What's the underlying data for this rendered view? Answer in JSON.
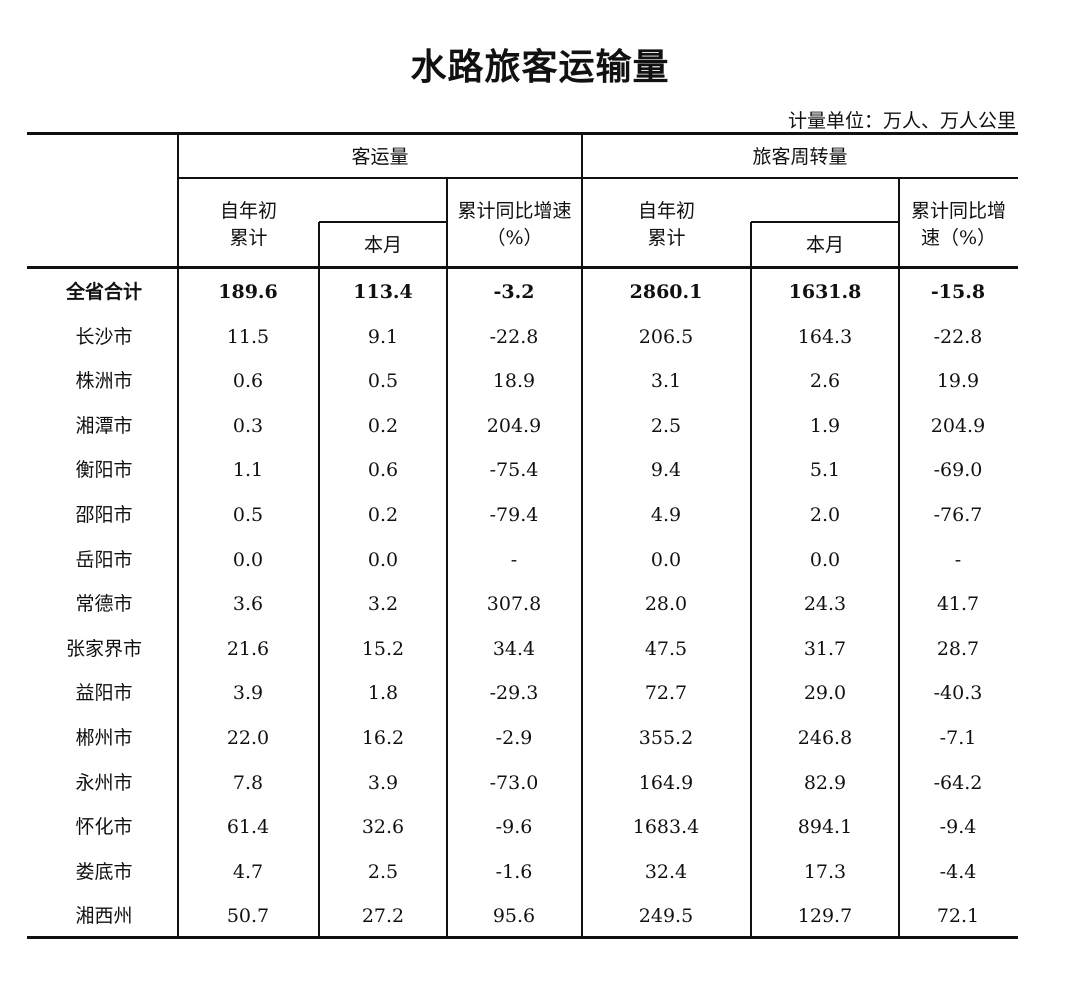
{
  "title": "水路旅客运输量",
  "unit": "计量单位：万人、万人公里",
  "headers": {
    "group1": "客运量",
    "group2": "旅客周转量",
    "ytd": "自年初\n累计",
    "ytd_line1": "自年初",
    "ytd_line2": "累计",
    "month": "本月",
    "growth1_line1": "累计同比增速",
    "growth1_line2": "（%）",
    "growth2_line1": "累计同比增",
    "growth2_line2": "速（%）"
  },
  "rows": [
    {
      "region": "全省合计",
      "values": [
        "189.6",
        "113.4",
        "-3.2",
        "2860.1",
        "1631.8",
        "-15.8"
      ],
      "bold": true
    },
    {
      "region": "长沙市",
      "values": [
        "11.5",
        "9.1",
        "-22.8",
        "206.5",
        "164.3",
        "-22.8"
      ]
    },
    {
      "region": "株洲市",
      "values": [
        "0.6",
        "0.5",
        "18.9",
        "3.1",
        "2.6",
        "19.9"
      ]
    },
    {
      "region": "湘潭市",
      "values": [
        "0.3",
        "0.2",
        "204.9",
        "2.5",
        "1.9",
        "204.9"
      ]
    },
    {
      "region": "衡阳市",
      "values": [
        "1.1",
        "0.6",
        "-75.4",
        "9.4",
        "5.1",
        "-69.0"
      ]
    },
    {
      "region": "邵阳市",
      "values": [
        "0.5",
        "0.2",
        "-79.4",
        "4.9",
        "2.0",
        "-76.7"
      ]
    },
    {
      "region": "岳阳市",
      "values": [
        "0.0",
        "0.0",
        "-",
        "0.0",
        "0.0",
        "-"
      ]
    },
    {
      "region": "常德市",
      "values": [
        "3.6",
        "3.2",
        "307.8",
        "28.0",
        "24.3",
        "41.7"
      ]
    },
    {
      "region": "张家界市",
      "values": [
        "21.6",
        "15.2",
        "34.4",
        "47.5",
        "31.7",
        "28.7"
      ]
    },
    {
      "region": "益阳市",
      "values": [
        "3.9",
        "1.8",
        "-29.3",
        "72.7",
        "29.0",
        "-40.3"
      ]
    },
    {
      "region": "郴州市",
      "values": [
        "22.0",
        "16.2",
        "-2.9",
        "355.2",
        "246.8",
        "-7.1"
      ]
    },
    {
      "region": "永州市",
      "values": [
        "7.8",
        "3.9",
        "-73.0",
        "164.9",
        "82.9",
        "-64.2"
      ]
    },
    {
      "region": "怀化市",
      "values": [
        "61.4",
        "32.6",
        "-9.6",
        "1683.4",
        "894.1",
        "-9.4"
      ]
    },
    {
      "region": "娄底市",
      "values": [
        "4.7",
        "2.5",
        "-1.6",
        "32.4",
        "17.3",
        "-4.4"
      ]
    },
    {
      "region": "湘西州",
      "values": [
        "50.7",
        "27.2",
        "95.6",
        "249.5",
        "129.7",
        "72.1"
      ]
    }
  ]
}
